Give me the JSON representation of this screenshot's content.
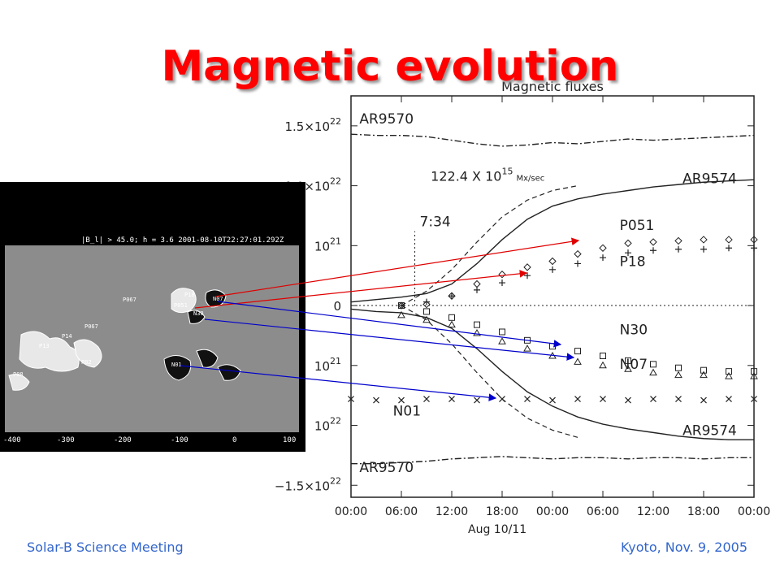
{
  "slide": {
    "title": "Magnetic evolution",
    "footer_left": "Solar-B Science Meeting",
    "footer_right": "Kyoto, Nov. 9, 2005"
  },
  "magnetogram": {
    "header": "|B_l| > 45.0; h =   3.6   2001-08-10T22:27:01.292Z",
    "x_ticks": [
      "-400",
      "-300",
      "-200",
      "-100",
      "0",
      "100"
    ],
    "region_labels": [
      "P18",
      "P051",
      "N07",
      "N30",
      "N01",
      "P067",
      "P067",
      "P14",
      "P13",
      "P02",
      "P08"
    ]
  },
  "chart_data": {
    "type": "line",
    "title": "Magnetic fluxes",
    "xlabel": "Aug 10/11",
    "x_ticks": [
      "00:00",
      "06:00",
      "12:00",
      "18:00",
      "00:00",
      "06:00",
      "12:00",
      "18:00",
      "00:00"
    ],
    "x": [
      0,
      3,
      6,
      9,
      12,
      15,
      18,
      21,
      24,
      27,
      30,
      33,
      36,
      39,
      42,
      45,
      48
    ],
    "y_ticks": [
      {
        "value": 1.5e+22,
        "base": "1.5×10",
        "exp": "22"
      },
      {
        "value": 1e+22,
        "base": "1.0×10",
        "exp": "22"
      },
      {
        "value": 5e+21,
        "base": "10",
        "exp": "21"
      },
      {
        "value": 0,
        "base": "0",
        "exp": ""
      },
      {
        "value": -5e+21,
        "base": "10",
        "exp": "21"
      },
      {
        "value": -1e+22,
        "base": "10",
        "exp": "22"
      },
      {
        "value": -1.5e+22,
        "base": "−1.5×10",
        "exp": "22"
      }
    ],
    "ylim": [
      -1.6e+22,
      1.75e+22
    ],
    "xlim": [
      0,
      48
    ],
    "series": [
      {
        "name": "AR9570",
        "style": "dashdot",
        "values": [
          1.43e+22,
          1.42e+22,
          1.42e+22,
          1.41e+22,
          1.38e+22,
          1.35e+22,
          1.33e+22,
          1.34e+22,
          1.36e+22,
          1.35e+22,
          1.37e+22,
          1.39e+22,
          1.38e+22,
          1.39e+22,
          1.4e+22,
          1.41e+22,
          1.42e+22
        ]
      },
      {
        "name": "AR9574",
        "style": "solid",
        "values": [
          3e+20,
          5e+20,
          7e+20,
          1e+21,
          1.8e+21,
          3.5e+21,
          5.5e+21,
          7.2e+21,
          8.3e+21,
          8.9e+21,
          9.3e+21,
          9.6e+21,
          9.9e+21,
          1.01e+22,
          1.03e+22,
          1.04e+22,
          1.05e+22
        ]
      },
      {
        "name": "AR9574",
        "style": "solid",
        "values": [
          -3e+20,
          -5e+20,
          -6e+20,
          -1e+21,
          -1.9e+21,
          -3.6e+21,
          -5.5e+21,
          -7.2e+21,
          -8.4e+21,
          -9.3e+21,
          -9.9e+21,
          -1.03e+22,
          -1.06e+22,
          -1.09e+22,
          -1.11e+22,
          -1.12e+22,
          -1.12e+22
        ]
      },
      {
        "name": "AR9570",
        "style": "dashdot",
        "values": [
          -1.32e+22,
          -1.32e+22,
          -1.31e+22,
          -1.3e+22,
          -1.28e+22,
          -1.27e+22,
          -1.26e+22,
          -1.27e+22,
          -1.28e+22,
          -1.27e+22,
          -1.27e+22,
          -1.28e+22,
          -1.27e+22,
          -1.27e+22,
          -1.28e+22,
          -1.27e+22,
          -1.27e+22
        ]
      },
      {
        "name": "P051",
        "style": "diamond",
        "values": [
          0,
          0,
          0,
          1e+20,
          8e+20,
          1.8e+21,
          2.6e+21,
          3.2e+21,
          3.7e+21,
          4.3e+21,
          4.8e+21,
          5.2e+21,
          5.3e+21,
          5.4e+21,
          5.5e+21,
          5.5e+21,
          5.5e+21
        ]
      },
      {
        "name": "P18",
        "style": "plus",
        "values": [
          0,
          0,
          0,
          3e+20,
          8e+20,
          1.3e+21,
          1.9e+21,
          2.5e+21,
          3e+21,
          3.5e+21,
          4e+21,
          4.4e+21,
          4.6e+21,
          4.7e+21,
          4.7e+21,
          4.8e+21,
          4.8e+21
        ]
      },
      {
        "name": "N30",
        "style": "square",
        "values": [
          0,
          0,
          0,
          -5e+20,
          -1e+21,
          -1.6e+21,
          -2.2e+21,
          -2.9e+21,
          -3.4e+21,
          -3.8e+21,
          -4.2e+21,
          -4.6e+21,
          -4.9e+21,
          -5.2e+21,
          -5.4e+21,
          -5.5e+21,
          -5.5e+21
        ]
      },
      {
        "name": "N07",
        "style": "triangle",
        "values": [
          -5e+20,
          -6e+20,
          -8e+20,
          -1.2e+21,
          -1.6e+21,
          -2.3e+21,
          -3e+21,
          -3.6e+21,
          -4.2e+21,
          -4.7e+21,
          -5e+21,
          -5.3e+21,
          -5.6e+21,
          -5.8e+21,
          -5.8e+21,
          -5.9e+21,
          -5.9e+21
        ]
      },
      {
        "name": "N01",
        "style": "cross",
        "values": [
          -7.8e+21,
          -7.9e+21,
          -7.9e+21,
          -7.8e+21,
          -7.8e+21,
          -7.9e+21,
          -7.8e+21,
          -7.8e+21,
          -7.9e+21,
          -7.8e+21,
          -7.8e+21,
          -7.9e+21,
          -7.8e+21,
          -7.8e+21,
          -7.9e+21,
          -7.8e+21,
          -7.8e+21
        ]
      }
    ],
    "dashed_fits": [
      {
        "x": [
          6,
          9,
          12,
          15,
          18,
          21,
          24,
          27
        ],
        "values": [
          0,
          1.2e+21,
          3e+21,
          5.3e+21,
          7.4e+21,
          8.8e+21,
          9.6e+21,
          1e+22
        ]
      },
      {
        "x": [
          6,
          9,
          12,
          15,
          18,
          21,
          24,
          27
        ],
        "values": [
          0,
          -1.2e+21,
          -3.2e+21,
          -5.6e+21,
          -7.8e+21,
          -9.4e+21,
          -1.04e+22,
          -1.1e+22
        ]
      }
    ],
    "vline": {
      "x": 7.6,
      "label": "7:34"
    },
    "annotations": {
      "rate": "122.4 X 10",
      "rate_exp": "15",
      "rate_unit": "Mx/sec"
    },
    "labels": [
      {
        "text": "AR9570",
        "x": 1,
        "y": 1.52e+22
      },
      {
        "text": "AR9574",
        "x": 39.5,
        "y": 1.02e+22
      },
      {
        "text": "P051",
        "x": 32,
        "y": 6.3e+21
      },
      {
        "text": "P18",
        "x": 32,
        "y": 3.3e+21
      },
      {
        "text": "N30",
        "x": 32,
        "y": -2.4e+21
      },
      {
        "text": "N07",
        "x": 32,
        "y": -5.3e+21
      },
      {
        "text": "N01",
        "x": 5,
        "y": -9.2e+21
      },
      {
        "text": "AR9574",
        "x": 39.5,
        "y": -1.08e+22
      },
      {
        "text": "AR9570",
        "x": 1,
        "y": -1.39e+22
      }
    ]
  },
  "arrows": {
    "colors": {
      "positive": "#e00000",
      "negative": "#0000cc"
    }
  }
}
